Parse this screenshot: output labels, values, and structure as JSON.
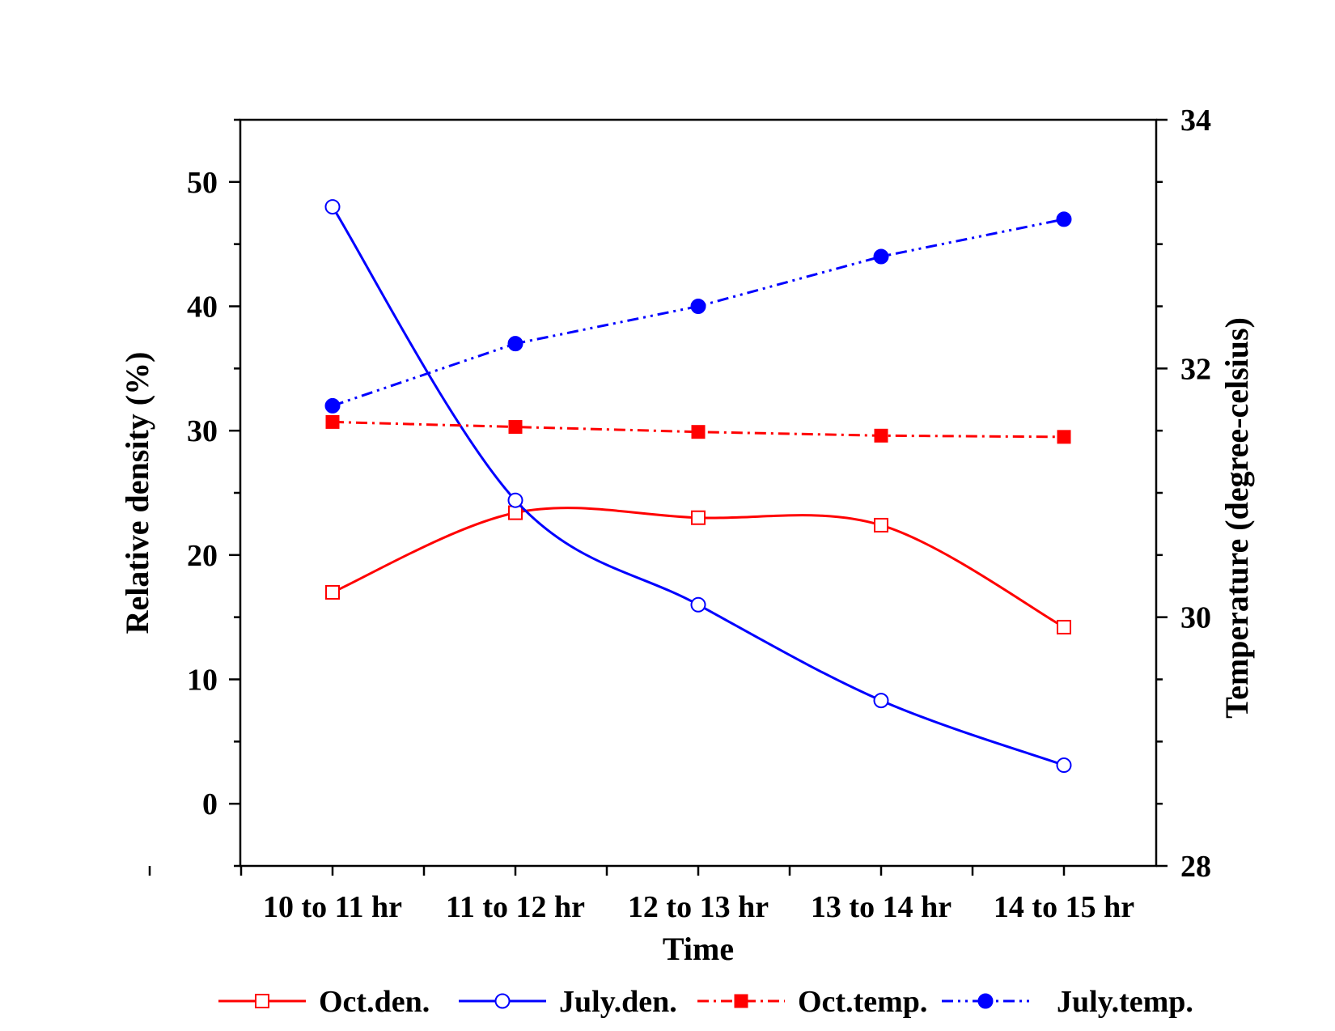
{
  "chart_data": {
    "type": "line",
    "xlabel": "Time",
    "ylabel_left": "Relative density (%)",
    "ylabel_right": "Temperature (degree-celsius)",
    "categories": [
      "10 to 11 hr",
      "11 to 12 hr",
      "12 to 13 hr",
      "13 to 14 hr",
      "14 to 15 hr"
    ],
    "ylim_left": [
      -5,
      55
    ],
    "yticks_left": [
      0,
      10,
      20,
      30,
      40,
      50
    ],
    "ylim_right": [
      28,
      34
    ],
    "yticks_right": [
      28,
      30,
      32,
      34
    ],
    "grid": false,
    "legend_position": "bottom",
    "series": [
      {
        "name": "Oct.den.",
        "axis": "left",
        "values": [
          17,
          23.4,
          23,
          22.4,
          14.2
        ],
        "color": "#ff0000",
        "line": "solid",
        "smooth": true,
        "marker": "open-square"
      },
      {
        "name": "July.den.",
        "axis": "left",
        "values": [
          48,
          24.4,
          16,
          8.3,
          3.1
        ],
        "color": "#0000ff",
        "line": "solid",
        "smooth": true,
        "marker": "open-circle"
      },
      {
        "name": "Oct.temp.",
        "axis": "right",
        "values": [
          31.57,
          31.53,
          31.49,
          31.46,
          31.45
        ],
        "color": "#ff0000",
        "line": "dash-dot",
        "smooth": false,
        "marker": "filled-square"
      },
      {
        "name": "July.temp.",
        "axis": "right",
        "values": [
          31.7,
          32.2,
          32.5,
          32.9,
          33.2
        ],
        "color": "#0000ff",
        "line": "dash-dot-dot",
        "smooth": false,
        "marker": "filled-circle"
      }
    ]
  }
}
